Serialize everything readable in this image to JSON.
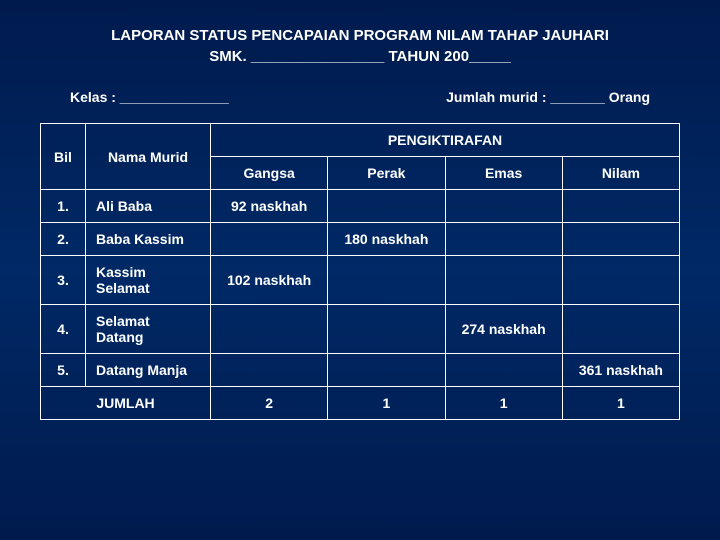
{
  "title_line1": "LAPORAN STATUS PENCAPAIAN PROGRAM NILAM TAHAP JAUHARI",
  "title_line2": "SMK. ________________ TAHUN 200_____",
  "kelas_label": "Kelas : ______________",
  "jumlah_label": "Jumlah murid : _______ Orang",
  "headers": {
    "bil": "Bil",
    "nama": "Nama Murid",
    "pengiktirafan": "PENGIKTIRAFAN",
    "gangsa": "Gangsa",
    "perak": "Perak",
    "emas": "Emas",
    "nilam": "Nilam"
  },
  "rows": [
    {
      "bil": "1.",
      "nama": "Ali Baba",
      "gangsa": "92 naskhah",
      "perak": "",
      "emas": "",
      "nilam": ""
    },
    {
      "bil": "2.",
      "nama": "Baba Kassim",
      "gangsa": "",
      "perak": "180 naskhah",
      "emas": "",
      "nilam": ""
    },
    {
      "bil": "3.",
      "nama": "Kassim Selamat",
      "gangsa": "102 naskhah",
      "perak": "",
      "emas": "",
      "nilam": ""
    },
    {
      "bil": "4.",
      "nama": "Selamat Datang",
      "gangsa": "",
      "perak": "",
      "emas": "274 naskhah",
      "nilam": ""
    },
    {
      "bil": "5.",
      "nama": "Datang Manja",
      "gangsa": "",
      "perak": "",
      "emas": "",
      "nilam": "361 naskhah"
    }
  ],
  "totals": {
    "label": "JUMLAH",
    "gangsa": "2",
    "perak": "1",
    "emas": "1",
    "nilam": "1"
  }
}
